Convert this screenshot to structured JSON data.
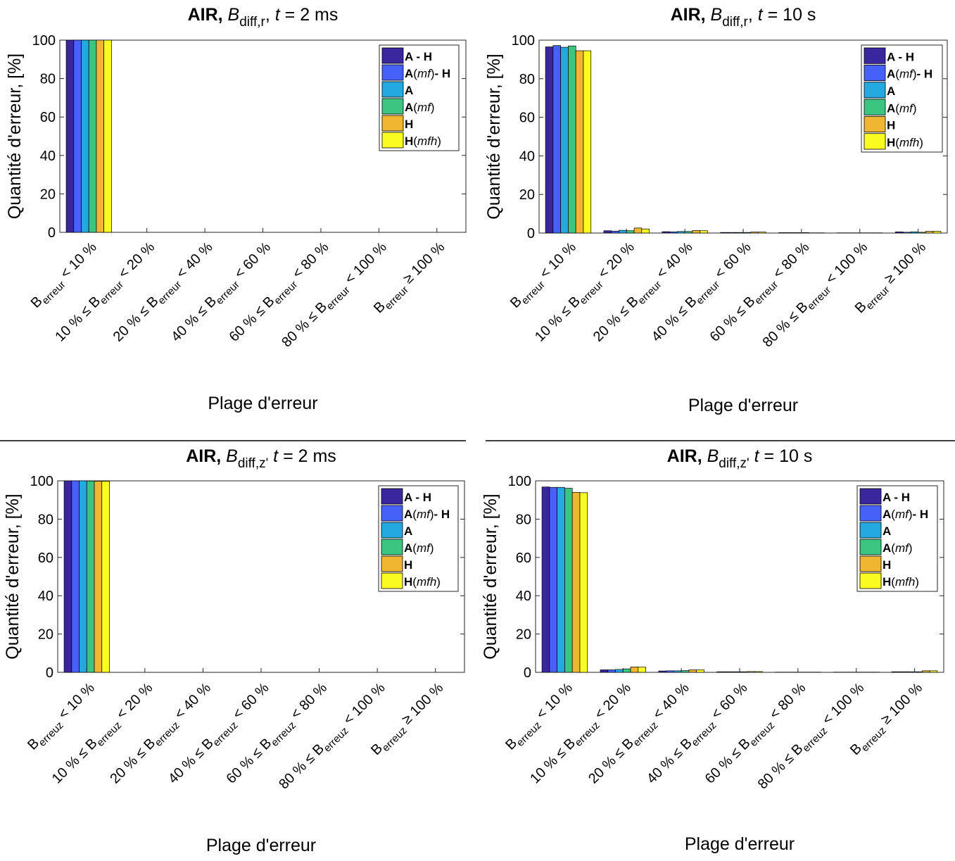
{
  "colors": {
    "series": [
      "#3a27a0",
      "#4661f7",
      "#23a9e0",
      "#3cc580",
      "#f0b531",
      "#f9fb21"
    ],
    "axis": "#262626",
    "divider": "#000000"
  },
  "legend_entries": [
    [
      {
        "t": "A - H",
        "b": true
      }
    ],
    [
      {
        "t": "A",
        "b": true
      },
      {
        "t": "(",
        "b": false
      },
      {
        "t": "mf",
        "i": true
      },
      {
        "t": ")",
        "b": false
      },
      {
        "t": "- H",
        "b": true
      }
    ],
    [
      {
        "t": "A",
        "b": true
      }
    ],
    [
      {
        "t": "A",
        "b": true
      },
      {
        "t": "(",
        "b": false
      },
      {
        "t": "mf",
        "i": true
      },
      {
        "t": ")",
        "b": false
      }
    ],
    [
      {
        "t": "H",
        "b": true
      }
    ],
    [
      {
        "t": "H",
        "b": true
      },
      {
        "t": "(",
        "b": false
      },
      {
        "t": "mfh",
        "i": true
      },
      {
        "t": ")",
        "b": false
      }
    ]
  ],
  "chart_data": [
    {
      "type": "bar",
      "title": {
        "bold": "AIR,",
        "var": "B",
        "sub": "diff,r",
        "sep": ",",
        "tvar": "t",
        "rest": "= 2 ms"
      },
      "xlabel": "Plage d'erreur",
      "ylabel": "Quantité d'erreur, [%]",
      "ylim": [
        0,
        100
      ],
      "yticks": [
        0,
        20,
        40,
        60,
        80,
        100
      ],
      "grid": false,
      "legend_position": "top-right",
      "categories": [
        {
          "pre": "",
          "var": "B",
          "sub": "erreur",
          "post": "< 10 %"
        },
        {
          "pre": "10 % ≤ ",
          "var": "B",
          "sub": "erreur",
          "post": "< 20 %"
        },
        {
          "pre": "20 % ≤ ",
          "var": "B",
          "sub": "erreur",
          "post": "< 40 %"
        },
        {
          "pre": "40 % ≤ ",
          "var": "B",
          "sub": "erreur",
          "post": "< 60 %"
        },
        {
          "pre": "60 % ≤ ",
          "var": "B",
          "sub": "erreur",
          "post": "< 80 %"
        },
        {
          "pre": "80 % ≤ ",
          "var": "B",
          "sub": "erreur",
          "post": "< 100 %"
        },
        {
          "pre": "",
          "var": "B",
          "sub": "erreur",
          "post": "≥ 100 %"
        }
      ],
      "series": [
        {
          "name": "A - H",
          "values": [
            100,
            0,
            0,
            0,
            0,
            0,
            0
          ]
        },
        {
          "name": "A(mf)- H",
          "values": [
            100,
            0,
            0,
            0,
            0,
            0,
            0
          ]
        },
        {
          "name": "A",
          "values": [
            100,
            0,
            0,
            0,
            0,
            0,
            0
          ]
        },
        {
          "name": "A(mf)",
          "values": [
            100,
            0,
            0,
            0,
            0,
            0,
            0
          ]
        },
        {
          "name": "H",
          "values": [
            100,
            0,
            0,
            0,
            0,
            0,
            0
          ]
        },
        {
          "name": "H(mfh)",
          "values": [
            100,
            0,
            0,
            0,
            0,
            0,
            0
          ]
        }
      ]
    },
    {
      "type": "bar",
      "title": {
        "bold": "AIR,",
        "var": "B",
        "sub": "diff,r",
        "sep": ",",
        "tvar": "t",
        "rest": "= 10 s"
      },
      "xlabel": "Plage d'erreur",
      "ylabel": "Quantité d'erreur, [%]",
      "ylim": [
        0,
        100
      ],
      "yticks": [
        0,
        20,
        40,
        60,
        80,
        100
      ],
      "grid": false,
      "legend_position": "top-right",
      "categories": [
        {
          "pre": "",
          "var": "B",
          "sub": "erreur",
          "post": "< 10 %"
        },
        {
          "pre": "10 % ≤ ",
          "var": "B",
          "sub": "erreur",
          "post": "< 20 %"
        },
        {
          "pre": "20 % ≤ ",
          "var": "B",
          "sub": "erreur",
          "post": "< 40 %"
        },
        {
          "pre": "40 % ≤ ",
          "var": "B",
          "sub": "erreur",
          "post": "< 60 %"
        },
        {
          "pre": "60 % ≤ ",
          "var": "B",
          "sub": "erreur",
          "post": "< 80 %"
        },
        {
          "pre": "80 % ≤ ",
          "var": "B",
          "sub": "erreur",
          "post": "< 100 %"
        },
        {
          "pre": "",
          "var": "B",
          "sub": "erreur",
          "post": "≥ 100 %"
        }
      ],
      "series": [
        {
          "name": "A - H",
          "values": [
            96.5,
            1.2,
            0.7,
            0.3,
            0.2,
            0.1,
            0.6
          ]
        },
        {
          "name": "A(mf)- H",
          "values": [
            97.2,
            1.0,
            0.6,
            0.3,
            0.2,
            0.1,
            0.4
          ]
        },
        {
          "name": "A",
          "values": [
            96.3,
            1.4,
            0.8,
            0.3,
            0.2,
            0.1,
            0.6
          ]
        },
        {
          "name": "A(mf)",
          "values": [
            97.0,
            1.2,
            0.8,
            0.3,
            0.2,
            0.1,
            0.4
          ]
        },
        {
          "name": "H",
          "values": [
            94.5,
            2.6,
            1.3,
            0.5,
            0.1,
            0.1,
            0.9
          ]
        },
        {
          "name": "H(mfh)",
          "values": [
            94.5,
            2.1,
            1.2,
            0.5,
            0.1,
            0.1,
            0.9
          ]
        }
      ]
    },
    {
      "type": "bar",
      "title": {
        "bold": "AIR,",
        "var": "B",
        "sub": "diff,z'",
        "sep": "",
        "tvar": "t",
        "rest": "= 2 ms"
      },
      "xlabel": "Plage d'erreur",
      "ylabel": "Quantité d'erreur, [%]",
      "ylim": [
        0,
        100
      ],
      "yticks": [
        0,
        20,
        40,
        60,
        80,
        100
      ],
      "grid": false,
      "legend_position": "top-right",
      "categories": [
        {
          "pre": "",
          "var": "B",
          "sub": "erreuz",
          "post": "< 10 %"
        },
        {
          "pre": "10 % ≤ ",
          "var": "B",
          "sub": "erreuz",
          "post": "< 20 %"
        },
        {
          "pre": "20 % ≤ ",
          "var": "B",
          "sub": "erreuz",
          "post": "< 40 %"
        },
        {
          "pre": "40 % ≤ ",
          "var": "B",
          "sub": "erreuz",
          "post": "< 60 %"
        },
        {
          "pre": "60 % ≤ ",
          "var": "B",
          "sub": "erreuz",
          "post": "< 80 %"
        },
        {
          "pre": "80 % ≤ ",
          "var": "B",
          "sub": "erreuz",
          "post": "< 100 %"
        },
        {
          "pre": "",
          "var": "B",
          "sub": "erreuz",
          "post": "≥ 100 %"
        }
      ],
      "series": [
        {
          "name": "A - H",
          "values": [
            100,
            0,
            0,
            0,
            0,
            0,
            0
          ]
        },
        {
          "name": "A(mf)- H",
          "values": [
            100,
            0,
            0,
            0,
            0,
            0,
            0
          ]
        },
        {
          "name": "A",
          "values": [
            100,
            0,
            0,
            0,
            0,
            0,
            0
          ]
        },
        {
          "name": "A(mf)",
          "values": [
            99.9,
            0,
            0,
            0,
            0,
            0,
            0
          ]
        },
        {
          "name": "H",
          "values": [
            99.8,
            0,
            0,
            0,
            0,
            0,
            0
          ]
        },
        {
          "name": "H(mfh)",
          "values": [
            99.8,
            0,
            0,
            0,
            0,
            0,
            0
          ]
        }
      ]
    },
    {
      "type": "bar",
      "title": {
        "bold": "AIR,",
        "var": "B",
        "sub": "diff,z'",
        "sep": "",
        "tvar": "t",
        "rest": "= 10 s"
      },
      "xlabel": "Plage d'erreur",
      "ylabel": "Quantité d'erreur, [%]",
      "ylim": [
        0,
        100
      ],
      "yticks": [
        0,
        20,
        40,
        60,
        80,
        100
      ],
      "grid": false,
      "legend_position": "top-right",
      "categories": [
        {
          "pre": "",
          "var": "B",
          "sub": "erreuz",
          "post": "< 10 %"
        },
        {
          "pre": "10 % ≤ ",
          "var": "B",
          "sub": "erreuz",
          "post": "< 20 %"
        },
        {
          "pre": "20 % ≤ ",
          "var": "B",
          "sub": "erreuz",
          "post": "< 40 %"
        },
        {
          "pre": "40 % ≤ ",
          "var": "B",
          "sub": "erreuz",
          "post": "< 60 %"
        },
        {
          "pre": "60 % ≤ ",
          "var": "B",
          "sub": "erreuz",
          "post": "< 80 %"
        },
        {
          "pre": "80 % ≤ ",
          "var": "B",
          "sub": "erreuz",
          "post": "< 100 %"
        },
        {
          "pre": "",
          "var": "B",
          "sub": "erreuz",
          "post": "≥ 100 %"
        }
      ],
      "series": [
        {
          "name": "A - H",
          "values": [
            96.8,
            1.3,
            0.7,
            0.3,
            0.1,
            0.1,
            0.3
          ]
        },
        {
          "name": "A(mf)- H",
          "values": [
            96.6,
            1.3,
            0.8,
            0.3,
            0.1,
            0.1,
            0.3
          ]
        },
        {
          "name": "A",
          "values": [
            96.6,
            1.5,
            0.8,
            0.3,
            0.1,
            0.1,
            0.3
          ]
        },
        {
          "name": "A(mf)",
          "values": [
            96.1,
            1.8,
            0.9,
            0.3,
            0.1,
            0.1,
            0.3
          ]
        },
        {
          "name": "H",
          "values": [
            94.0,
            2.8,
            1.3,
            0.4,
            0.1,
            0.1,
            0.8
          ]
        },
        {
          "name": "H(mfh)",
          "values": [
            93.8,
            2.7,
            1.3,
            0.4,
            0.1,
            0.1,
            0.8
          ]
        }
      ]
    }
  ]
}
